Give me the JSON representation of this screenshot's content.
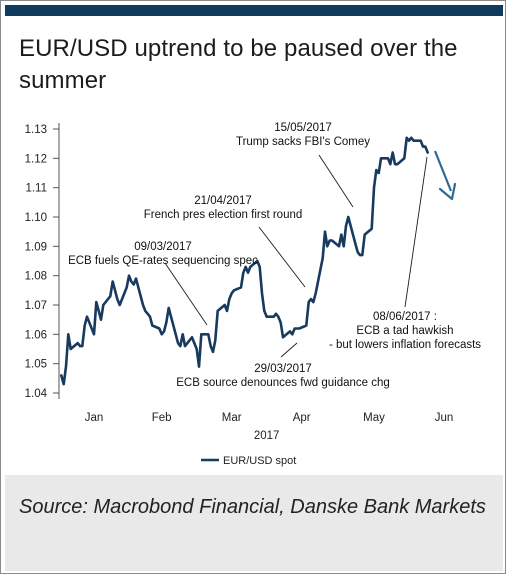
{
  "header": {
    "title": "EUR/USD uptrend to be paused over the summer"
  },
  "footer": {
    "source": "Source: Macrobond Financial, Danske Bank Markets"
  },
  "colors": {
    "accent_bar": "#0f3b5f",
    "series_line": "#173a5e",
    "arrow": "#2f6a96",
    "footer_bg": "#e9e9e9"
  },
  "chart_data": {
    "type": "line",
    "title": "EUR/USD uptrend to be paused over the summer",
    "xlabel": "2017",
    "ylabel": "",
    "ylim": [
      1.04,
      1.13
    ],
    "yticks": [
      "1.04",
      "1.05",
      "1.06",
      "1.07",
      "1.08",
      "1.09",
      "1.10",
      "1.11",
      "1.12",
      "1.13"
    ],
    "xticks": [
      "Jan",
      "Feb",
      "Mar",
      "Apr",
      "May",
      "Jun"
    ],
    "grid": false,
    "legend": "bottom",
    "series": [
      {
        "name": "EUR/USD spot",
        "x": [
          "2017-01-02",
          "2017-01-03",
          "2017-01-04",
          "2017-01-05",
          "2017-01-06",
          "2017-01-09",
          "2017-01-10",
          "2017-01-11",
          "2017-01-12",
          "2017-01-13",
          "2017-01-16",
          "2017-01-17",
          "2017-01-18",
          "2017-01-19",
          "2017-01-20",
          "2017-01-23",
          "2017-01-24",
          "2017-01-25",
          "2017-01-26",
          "2017-01-27",
          "2017-01-30",
          "2017-01-31",
          "2017-02-01",
          "2017-02-02",
          "2017-02-03",
          "2017-02-06",
          "2017-02-07",
          "2017-02-08",
          "2017-02-09",
          "2017-02-10",
          "2017-02-13",
          "2017-02-14",
          "2017-02-15",
          "2017-02-16",
          "2017-02-17",
          "2017-02-20",
          "2017-02-21",
          "2017-02-22",
          "2017-02-23",
          "2017-02-24",
          "2017-02-27",
          "2017-02-28",
          "2017-03-01",
          "2017-03-02",
          "2017-03-03",
          "2017-03-06",
          "2017-03-07",
          "2017-03-08",
          "2017-03-09",
          "2017-03-10",
          "2017-03-13",
          "2017-03-14",
          "2017-03-15",
          "2017-03-16",
          "2017-03-17",
          "2017-03-20",
          "2017-03-21",
          "2017-03-22",
          "2017-03-23",
          "2017-03-24",
          "2017-03-27",
          "2017-03-28",
          "2017-03-29",
          "2017-03-30",
          "2017-03-31",
          "2017-04-03",
          "2017-04-04",
          "2017-04-05",
          "2017-04-06",
          "2017-04-07",
          "2017-04-10",
          "2017-04-11",
          "2017-04-12",
          "2017-04-13",
          "2017-04-14",
          "2017-04-17",
          "2017-04-18",
          "2017-04-19",
          "2017-04-20",
          "2017-04-21",
          "2017-04-24",
          "2017-04-25",
          "2017-04-26",
          "2017-04-27",
          "2017-04-28",
          "2017-05-01",
          "2017-05-02",
          "2017-05-03",
          "2017-05-04",
          "2017-05-05",
          "2017-05-08",
          "2017-05-09",
          "2017-05-10",
          "2017-05-11",
          "2017-05-12",
          "2017-05-15",
          "2017-05-16",
          "2017-05-17",
          "2017-05-18",
          "2017-05-19",
          "2017-05-22",
          "2017-05-23",
          "2017-05-24",
          "2017-05-25",
          "2017-05-26",
          "2017-05-29",
          "2017-05-30",
          "2017-05-31",
          "2017-06-01",
          "2017-06-02",
          "2017-06-05",
          "2017-06-06",
          "2017-06-07",
          "2017-06-08"
        ],
        "values": [
          1.046,
          1.043,
          1.049,
          1.06,
          1.055,
          1.057,
          1.056,
          1.056,
          1.063,
          1.066,
          1.06,
          1.071,
          1.068,
          1.065,
          1.07,
          1.073,
          1.078,
          1.075,
          1.072,
          1.07,
          1.076,
          1.08,
          1.078,
          1.077,
          1.079,
          1.07,
          1.068,
          1.067,
          1.066,
          1.063,
          1.062,
          1.06,
          1.061,
          1.064,
          1.069,
          1.06,
          1.057,
          1.056,
          1.06,
          1.056,
          1.059,
          1.057,
          1.055,
          1.049,
          1.06,
          1.06,
          1.056,
          1.054,
          1.058,
          1.068,
          1.07,
          1.068,
          1.072,
          1.074,
          1.075,
          1.076,
          1.081,
          1.083,
          1.081,
          1.083,
          1.085,
          1.083,
          1.074,
          1.068,
          1.066,
          1.066,
          1.067,
          1.066,
          1.064,
          1.059,
          1.061,
          1.06,
          1.062,
          1.062,
          1.062,
          1.063,
          1.071,
          1.072,
          1.071,
          1.074,
          1.086,
          1.095,
          1.09,
          1.092,
          1.092,
          1.09,
          1.094,
          1.09,
          1.097,
          1.1,
          1.091,
          1.088,
          1.087,
          1.087,
          1.094,
          1.096,
          1.11,
          1.116,
          1.115,
          1.12,
          1.12,
          1.118,
          1.122,
          1.118,
          1.118,
          1.12,
          1.127,
          1.126,
          1.127,
          1.126,
          1.126,
          1.124,
          1.124,
          1.122
        ]
      }
    ],
    "annotations": [
      {
        "lines": [
          "15/05/2017",
          "Trump sacks FBI's Comey"
        ]
      },
      {
        "lines": [
          "21/04/2017",
          "French pres election first round"
        ]
      },
      {
        "lines": [
          "09/03/2017",
          "ECB fuels QE-rates sequencing spec"
        ]
      },
      {
        "lines": [
          "29/03/2017",
          "ECB source denounces fwd guidance chg"
        ]
      },
      {
        "lines": [
          "08/06/2017 :",
          "ECB a tad hawkish",
          "- but lowers inflation forecasts"
        ]
      }
    ]
  }
}
